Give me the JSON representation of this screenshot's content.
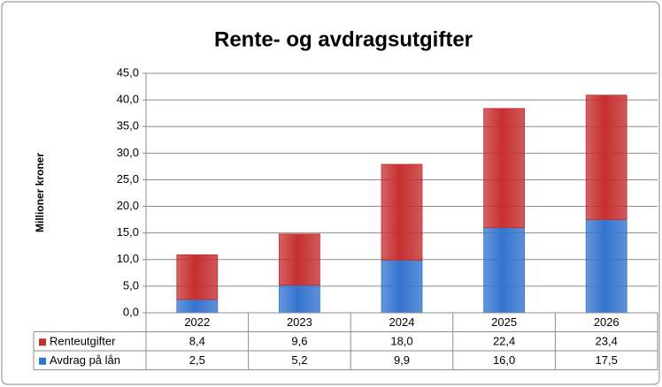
{
  "chart_data": {
    "type": "bar",
    "stacked": true,
    "title": "Rente- og avdragsutgifter",
    "y_label": "Millioner kroner",
    "categories": [
      "2022",
      "2023",
      "2024",
      "2025",
      "2026"
    ],
    "series": [
      {
        "name": "Renteutgifter",
        "color": "#c62f2f",
        "values": [
          8.4,
          9.6,
          18.0,
          22.4,
          23.4
        ],
        "value_labels": [
          "8,4",
          "9,6",
          "18,0",
          "22,4",
          "23,4"
        ]
      },
      {
        "name": "Avdrag på lån",
        "color": "#3474cf",
        "values": [
          2.5,
          5.2,
          9.9,
          16.0,
          17.5
        ],
        "value_labels": [
          "2,5",
          "5,2",
          "9,9",
          "16,0",
          "17,5"
        ]
      }
    ],
    "ylim": [
      0,
      45
    ],
    "yticks": [
      {
        "value": 0,
        "label": "0,0"
      },
      {
        "value": 5,
        "label": "5,0"
      },
      {
        "value": 10,
        "label": "10,0"
      },
      {
        "value": 15,
        "label": "15,0"
      },
      {
        "value": 20,
        "label": "20,0"
      },
      {
        "value": 25,
        "label": "25,0"
      },
      {
        "value": 30,
        "label": "30,0"
      },
      {
        "value": 35,
        "label": "35,0"
      },
      {
        "value": 40,
        "label": "40,0"
      },
      {
        "value": 45,
        "label": "45,0"
      }
    ],
    "grid": true,
    "data_table": true
  }
}
